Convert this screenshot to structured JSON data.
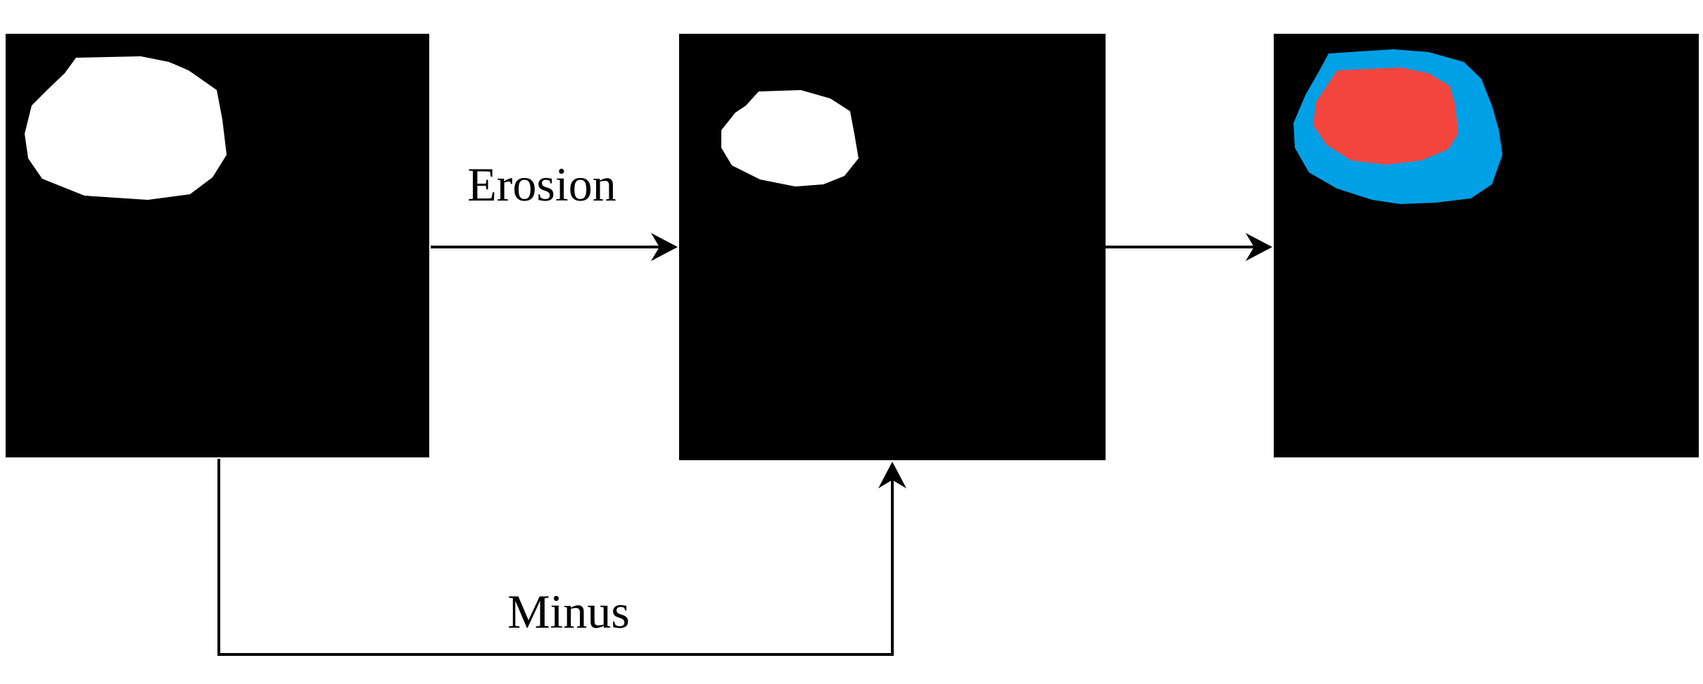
{
  "labels": {
    "erosion": "Erosion",
    "minus": "Minus"
  },
  "colors": {
    "background": "#000000",
    "foreground": "#ffffff",
    "boundary": "#00a0e6",
    "interior": "#f2453d"
  }
}
